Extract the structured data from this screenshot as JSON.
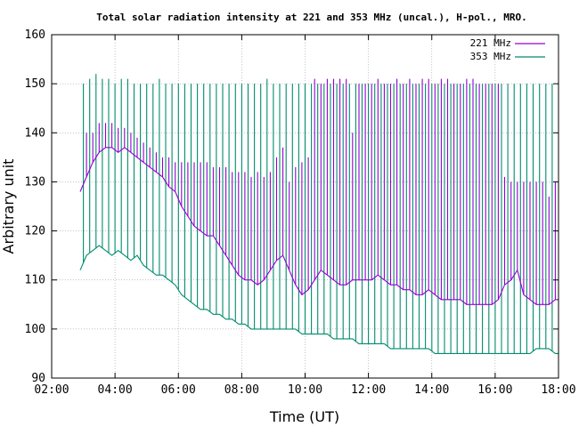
{
  "chart_data": {
    "type": "line",
    "title": "Total solar radiation intensity at 221 and 353 MHz (uncal.), H-pol., MRO.",
    "xlabel": "Time (UT)",
    "ylabel": "Arbitrary unit",
    "xlim": [
      2,
      18
    ],
    "ylim": [
      90,
      160
    ],
    "x_ticks": [
      {
        "value": 2,
        "label": "02:00"
      },
      {
        "value": 4,
        "label": "04:00"
      },
      {
        "value": 6,
        "label": "06:00"
      },
      {
        "value": 8,
        "label": "08:00"
      },
      {
        "value": 10,
        "label": "10:00"
      },
      {
        "value": 12,
        "label": "12:00"
      },
      {
        "value": 14,
        "label": "14:00"
      },
      {
        "value": 16,
        "label": "16:00"
      },
      {
        "value": 18,
        "label": "18:00"
      }
    ],
    "y_ticks": [
      90,
      100,
      110,
      120,
      130,
      140,
      150,
      160
    ],
    "grid": true,
    "legend_position": "top-right",
    "series": [
      {
        "name": "221 MHz",
        "color": "#9400d3",
        "x": [
          2.9,
          3.1,
          3.3,
          3.5,
          3.7,
          3.9,
          4.1,
          4.3,
          4.5,
          4.7,
          4.9,
          5.1,
          5.3,
          5.5,
          5.7,
          5.9,
          6.1,
          6.3,
          6.5,
          6.7,
          6.9,
          7.1,
          7.3,
          7.5,
          7.7,
          7.9,
          8.1,
          8.3,
          8.5,
          8.7,
          8.9,
          9.1,
          9.3,
          9.5,
          9.7,
          9.9,
          10.1,
          10.3,
          10.5,
          10.7,
          10.9,
          11.1,
          11.3,
          11.5,
          11.7,
          11.9,
          12.1,
          12.3,
          12.5,
          12.7,
          12.9,
          13.1,
          13.3,
          13.5,
          13.7,
          13.9,
          14.1,
          14.3,
          14.5,
          14.7,
          14.9,
          15.1,
          15.3,
          15.5,
          15.7,
          15.9,
          16.1,
          16.3,
          16.5,
          16.7,
          16.9,
          17.1,
          17.3,
          17.5,
          17.7,
          17.9,
          18.0
        ],
        "values": [
          128,
          131,
          134,
          136,
          137,
          137,
          136,
          137,
          136,
          135,
          134,
          133,
          132,
          131,
          129,
          128,
          125,
          123,
          121,
          120,
          119,
          119,
          117,
          115,
          113,
          111,
          110,
          110,
          109,
          110,
          112,
          114,
          115,
          112,
          109,
          107,
          108,
          110,
          112,
          111,
          110,
          109,
          109,
          110,
          110,
          110,
          110,
          111,
          110,
          109,
          109,
          108,
          108,
          107,
          107,
          108,
          107,
          106,
          106,
          106,
          106,
          105,
          105,
          105,
          105,
          105,
          106,
          109,
          110,
          112,
          107,
          106,
          105,
          105,
          105,
          106,
          106
        ],
        "spike_times": [
          3.1,
          3.3,
          3.5,
          3.7,
          3.9,
          4.1,
          4.3,
          4.5,
          4.7,
          4.9,
          5.1,
          5.3,
          5.5,
          5.7,
          5.9,
          6.1,
          6.3,
          6.5,
          6.7,
          6.9,
          7.1,
          7.3,
          7.5,
          7.7,
          7.9,
          8.1,
          8.3,
          8.5,
          8.7,
          8.9,
          9.1,
          9.3,
          9.5,
          9.7,
          9.9,
          10.1,
          10.3,
          10.5,
          10.7,
          10.9,
          11.1,
          11.3,
          11.5,
          11.7,
          11.9,
          12.1,
          12.3,
          12.5,
          12.7,
          12.9,
          13.1,
          13.3,
          13.5,
          13.7,
          13.9,
          14.1,
          14.3,
          14.5,
          14.7,
          14.9,
          15.1,
          15.3,
          15.5,
          15.7,
          15.9,
          16.1,
          16.3,
          16.5,
          16.7,
          16.9,
          17.1,
          17.3,
          17.5,
          17.7,
          17.9
        ],
        "spike_peaks": [
          140,
          140,
          142,
          142,
          142,
          141,
          141,
          140,
          139,
          138,
          137,
          136,
          135,
          135,
          134,
          134,
          134,
          134,
          134,
          134,
          133,
          133,
          133,
          132,
          132,
          132,
          131,
          132,
          131,
          132,
          135,
          137,
          130,
          133,
          134,
          135,
          151,
          150,
          151,
          151,
          151,
          151,
          140,
          150,
          150,
          150,
          151,
          150,
          150,
          151,
          150,
          151,
          150,
          151,
          151,
          150,
          151,
          151,
          150,
          150,
          151,
          151,
          150,
          150,
          150,
          150,
          131,
          130,
          130,
          130,
          130,
          130,
          130,
          127,
          130
        ]
      },
      {
        "name": "353 MHz",
        "color": "#008c6e",
        "x": [
          2.9,
          3.1,
          3.3,
          3.5,
          3.7,
          3.9,
          4.1,
          4.3,
          4.5,
          4.7,
          4.9,
          5.1,
          5.3,
          5.5,
          5.7,
          5.9,
          6.1,
          6.3,
          6.5,
          6.7,
          6.9,
          7.1,
          7.3,
          7.5,
          7.7,
          7.9,
          8.1,
          8.3,
          8.5,
          8.7,
          8.9,
          9.1,
          9.3,
          9.5,
          9.7,
          9.9,
          10.1,
          10.3,
          10.5,
          10.7,
          10.9,
          11.1,
          11.3,
          11.5,
          11.7,
          11.9,
          12.1,
          12.3,
          12.5,
          12.7,
          12.9,
          13.1,
          13.3,
          13.5,
          13.7,
          13.9,
          14.1,
          14.3,
          14.5,
          14.7,
          14.9,
          15.1,
          15.3,
          15.5,
          15.7,
          15.9,
          16.1,
          16.3,
          16.5,
          16.7,
          16.9,
          17.1,
          17.3,
          17.5,
          17.7,
          17.9,
          18.0
        ],
        "values": [
          112,
          115,
          116,
          117,
          116,
          115,
          116,
          115,
          114,
          115,
          113,
          112,
          111,
          111,
          110,
          109,
          107,
          106,
          105,
          104,
          104,
          103,
          103,
          102,
          102,
          101,
          101,
          100,
          100,
          100,
          100,
          100,
          100,
          100,
          100,
          99,
          99,
          99,
          99,
          99,
          98,
          98,
          98,
          98,
          97,
          97,
          97,
          97,
          97,
          96,
          96,
          96,
          96,
          96,
          96,
          96,
          95,
          95,
          95,
          95,
          95,
          95,
          95,
          95,
          95,
          95,
          95,
          95,
          95,
          95,
          95,
          95,
          96,
          96,
          96,
          95,
          95
        ],
        "spike_times": [
          3.0,
          3.2,
          3.4,
          3.6,
          3.8,
          4.0,
          4.2,
          4.4,
          4.6,
          4.8,
          5.0,
          5.2,
          5.4,
          5.6,
          5.8,
          6.0,
          6.2,
          6.4,
          6.6,
          6.8,
          7.0,
          7.2,
          7.4,
          7.6,
          7.8,
          8.0,
          8.2,
          8.4,
          8.6,
          8.8,
          9.0,
          9.2,
          9.4,
          9.6,
          9.8,
          10.0,
          10.2,
          10.4,
          10.6,
          10.8,
          11.0,
          11.2,
          11.4,
          11.6,
          11.8,
          12.0,
          12.2,
          12.4,
          12.6,
          12.8,
          13.0,
          13.2,
          13.4,
          13.6,
          13.8,
          14.0,
          14.2,
          14.4,
          14.6,
          14.8,
          15.0,
          15.2,
          15.4,
          15.6,
          15.8,
          16.0,
          16.2,
          16.4,
          16.6,
          16.8,
          17.0,
          17.2,
          17.4,
          17.6,
          17.8
        ],
        "spike_peaks": [
          150,
          151,
          152,
          151,
          151,
          150,
          151,
          151,
          150,
          150,
          150,
          150,
          151,
          150,
          150,
          150,
          150,
          150,
          150,
          150,
          150,
          150,
          150,
          150,
          150,
          150,
          150,
          150,
          150,
          151,
          150,
          150,
          150,
          150,
          150,
          150,
          150,
          150,
          150,
          150,
          150,
          150,
          150,
          150,
          150,
          150,
          150,
          150,
          150,
          150,
          150,
          150,
          150,
          150,
          150,
          150,
          150,
          150,
          150,
          150,
          150,
          150,
          150,
          150,
          150,
          150,
          150,
          150,
          150,
          150,
          150,
          150,
          150,
          150,
          150
        ]
      }
    ]
  }
}
